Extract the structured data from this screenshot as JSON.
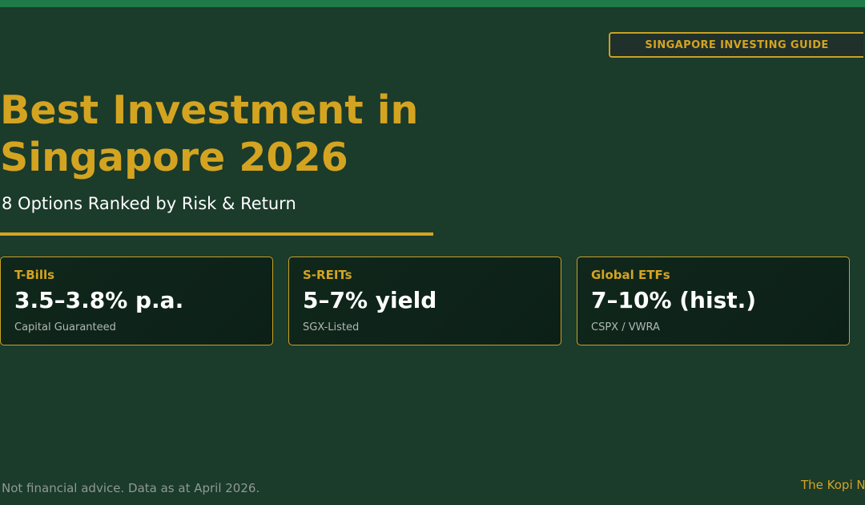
{
  "colors": {
    "background": "#1b3b2b",
    "top_bar": "#1e7a46",
    "accent_gold": "#d4a421",
    "card_background": "#0c2018",
    "text_white": "#ffffff",
    "text_muted": "#8f9a94"
  },
  "header": {
    "tag": "SINGAPORE INVESTING GUIDE",
    "title_line_1": "Best Investment in",
    "title_line_2": "Singapore 2026",
    "subtitle": "8 Options Ranked by Risk & Return"
  },
  "cards": [
    {
      "label": "T-Bills",
      "value": "3.5–3.8% p.a.",
      "note": "Capital Guaranteed"
    },
    {
      "label": "S-REITs",
      "value": "5–7% yield",
      "note": "SGX-Listed"
    },
    {
      "label": "Global ETFs",
      "value": "7–10% (hist.)",
      "note": "CSPX / VWRA"
    }
  ],
  "footer": {
    "disclaimer": "Not financial advice. Data as at April 2026.",
    "brand": "The Kopi N"
  }
}
